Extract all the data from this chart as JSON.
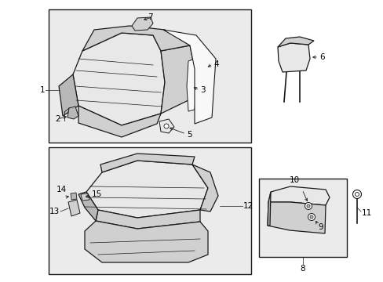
{
  "background_color": "#ffffff",
  "fig_width": 4.89,
  "fig_height": 3.6,
  "dpi": 100,
  "line_color": "#1a1a1a",
  "fill_light": "#e8e8e8",
  "fill_medium": "#d0d0d0",
  "fill_dark": "#b8b8b8",
  "fill_white": "#f8f8f8",
  "fill_bg": "#ebebeb"
}
